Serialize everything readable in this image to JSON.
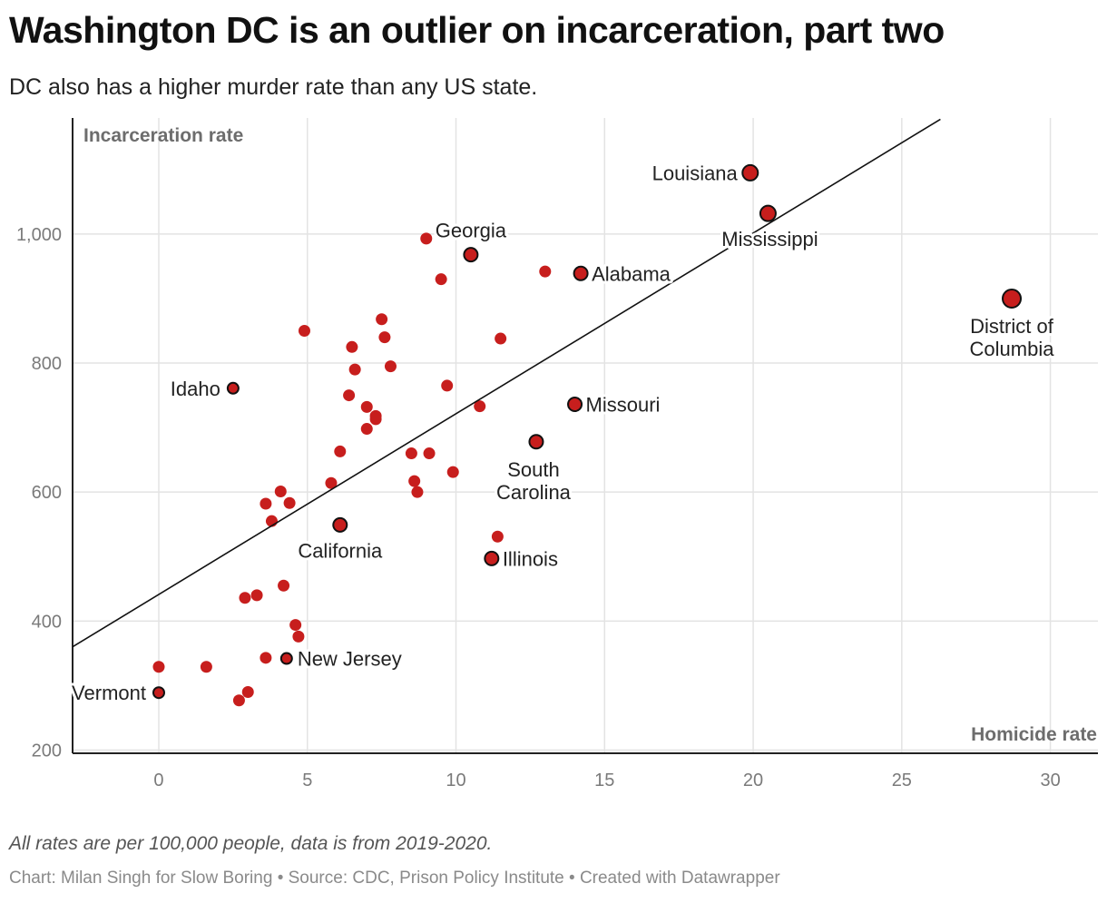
{
  "header": {
    "title": "Washington DC is an outlier on incarceration, part two",
    "subtitle": "DC also has a higher murder rate than any US state."
  },
  "footer": {
    "note": "All rates are per 100,000 people, data is from 2019-2020.",
    "credit": "Chart: Milan Singh for Slow Boring • Source: CDC, Prison Policy Institute • Created with Datawrapper"
  },
  "colors": {
    "point": "#c71e1d",
    "grid": "#e3e3e3",
    "axis": "#222222",
    "axis_label": "#6d6d6d"
  },
  "chart_data": {
    "type": "scatter",
    "title": "Washington DC is an outlier on incarceration, part two",
    "subtitle": "DC also has a higher murder rate than any US state.",
    "xlabel": "Homicide rate",
    "ylabel": "Incarceration rate",
    "xlim": [
      -2.9,
      31.6
    ],
    "ylim": [
      195,
      1180
    ],
    "x_ticks": [
      0,
      5,
      10,
      15,
      20,
      25,
      30
    ],
    "x_tick_labels": [
      "0",
      "5",
      "10",
      "15",
      "20",
      "25",
      "30"
    ],
    "y_ticks": [
      200,
      400,
      600,
      800,
      1000
    ],
    "y_tick_labels": [
      "200",
      "400",
      "600",
      "800",
      "1,000"
    ],
    "grid": true,
    "trendline": {
      "x": [
        -2.9,
        26.3
      ],
      "y": [
        360,
        1178
      ]
    },
    "labeled_points": [
      {
        "label": "Louisiana",
        "x": 19.9,
        "y": 1095,
        "label_pos": "left"
      },
      {
        "label": "Mississippi",
        "x": 20.5,
        "y": 1032,
        "label_pos": "below"
      },
      {
        "label": "Georgia",
        "x": 10.5,
        "y": 968,
        "label_pos": "above-left"
      },
      {
        "label": "Alabama",
        "x": 14.2,
        "y": 939,
        "label_pos": "right"
      },
      {
        "label": "District of Columbia",
        "x": 28.7,
        "y": 900,
        "label_pos": "below"
      },
      {
        "label": "Idaho",
        "x": 2.5,
        "y": 761,
        "label_pos": "left"
      },
      {
        "label": "Missouri",
        "x": 14.0,
        "y": 736,
        "label_pos": "right"
      },
      {
        "label": "South Carolina",
        "x": 12.7,
        "y": 678,
        "label_pos": "below"
      },
      {
        "label": "California",
        "x": 6.1,
        "y": 549,
        "label_pos": "below"
      },
      {
        "label": "Illinois",
        "x": 11.2,
        "y": 497,
        "label_pos": "right"
      },
      {
        "label": "New Jersey",
        "x": 4.3,
        "y": 342,
        "label_pos": "right"
      },
      {
        "label": "Vermont",
        "x": 0.0,
        "y": 289,
        "label_pos": "left"
      }
    ],
    "points": [
      {
        "x": 9.0,
        "y": 993
      },
      {
        "x": 13.0,
        "y": 942
      },
      {
        "x": 9.5,
        "y": 930
      },
      {
        "x": 4.9,
        "y": 850
      },
      {
        "x": 7.5,
        "y": 868
      },
      {
        "x": 7.6,
        "y": 840
      },
      {
        "x": 11.5,
        "y": 838
      },
      {
        "x": 6.5,
        "y": 825
      },
      {
        "x": 6.6,
        "y": 790
      },
      {
        "x": 7.8,
        "y": 795
      },
      {
        "x": 9.7,
        "y": 765
      },
      {
        "x": 6.4,
        "y": 750
      },
      {
        "x": 7.0,
        "y": 732
      },
      {
        "x": 10.8,
        "y": 733
      },
      {
        "x": 7.3,
        "y": 718
      },
      {
        "x": 7.3,
        "y": 713
      },
      {
        "x": 7.0,
        "y": 698
      },
      {
        "x": 6.1,
        "y": 663
      },
      {
        "x": 8.5,
        "y": 660
      },
      {
        "x": 9.1,
        "y": 660
      },
      {
        "x": 9.9,
        "y": 631
      },
      {
        "x": 8.6,
        "y": 617
      },
      {
        "x": 5.8,
        "y": 614
      },
      {
        "x": 8.7,
        "y": 600
      },
      {
        "x": 4.1,
        "y": 601
      },
      {
        "x": 3.6,
        "y": 582
      },
      {
        "x": 4.4,
        "y": 583
      },
      {
        "x": 3.8,
        "y": 555
      },
      {
        "x": 11.4,
        "y": 531
      },
      {
        "x": 4.2,
        "y": 455
      },
      {
        "x": 3.3,
        "y": 440
      },
      {
        "x": 2.9,
        "y": 436
      },
      {
        "x": 4.6,
        "y": 394
      },
      {
        "x": 4.7,
        "y": 376
      },
      {
        "x": 3.6,
        "y": 343
      },
      {
        "x": 0.0,
        "y": 329
      },
      {
        "x": 1.6,
        "y": 329
      },
      {
        "x": 3.0,
        "y": 290
      },
      {
        "x": 2.7,
        "y": 277
      }
    ]
  }
}
